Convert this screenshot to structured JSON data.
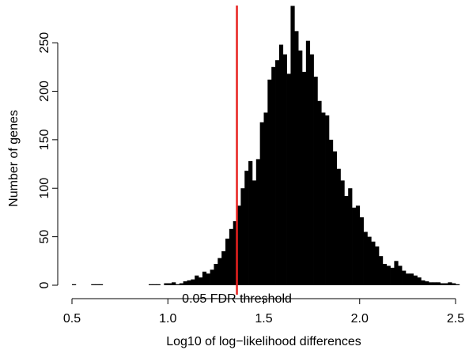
{
  "chart_data": {
    "type": "bar",
    "title": "",
    "xlabel": "Log10 of log−likelihood differences",
    "ylabel": "Number of genes",
    "xlim": [
      0.5,
      2.5
    ],
    "ylim": [
      0,
      290
    ],
    "x_ticks": [
      "0.5",
      "1.0",
      "1.5",
      "2.0",
      "2.5"
    ],
    "y_ticks": [
      "0",
      "50",
      "100",
      "150",
      "200",
      "250"
    ],
    "bin_width": 0.02,
    "bin_start": 0.5,
    "values": [
      1,
      0,
      0,
      0,
      0,
      1,
      1,
      1,
      0,
      0,
      0,
      0,
      0,
      0,
      0,
      0,
      0,
      0,
      0,
      0,
      1,
      1,
      1,
      0,
      2,
      2,
      3,
      1,
      2,
      4,
      5,
      6,
      10,
      8,
      14,
      12,
      16,
      22,
      28,
      35,
      48,
      58,
      66,
      82,
      100,
      118,
      128,
      108,
      130,
      168,
      178,
      212,
      225,
      232,
      248,
      238,
      218,
      288,
      262,
      242,
      220,
      252,
      238,
      215,
      190,
      178,
      175,
      150,
      138,
      120,
      108,
      92,
      100,
      80,
      82,
      70,
      55,
      50,
      45,
      40,
      30,
      22,
      20,
      18,
      25,
      20,
      15,
      12,
      12,
      10,
      8,
      5,
      4,
      3,
      3,
      3,
      2,
      2,
      3,
      2,
      1
    ],
    "threshold": {
      "x": 1.36,
      "label": "0.05 FDR threshold",
      "color": "#e8211f"
    },
    "bar_color": "#000000",
    "grid": false
  }
}
